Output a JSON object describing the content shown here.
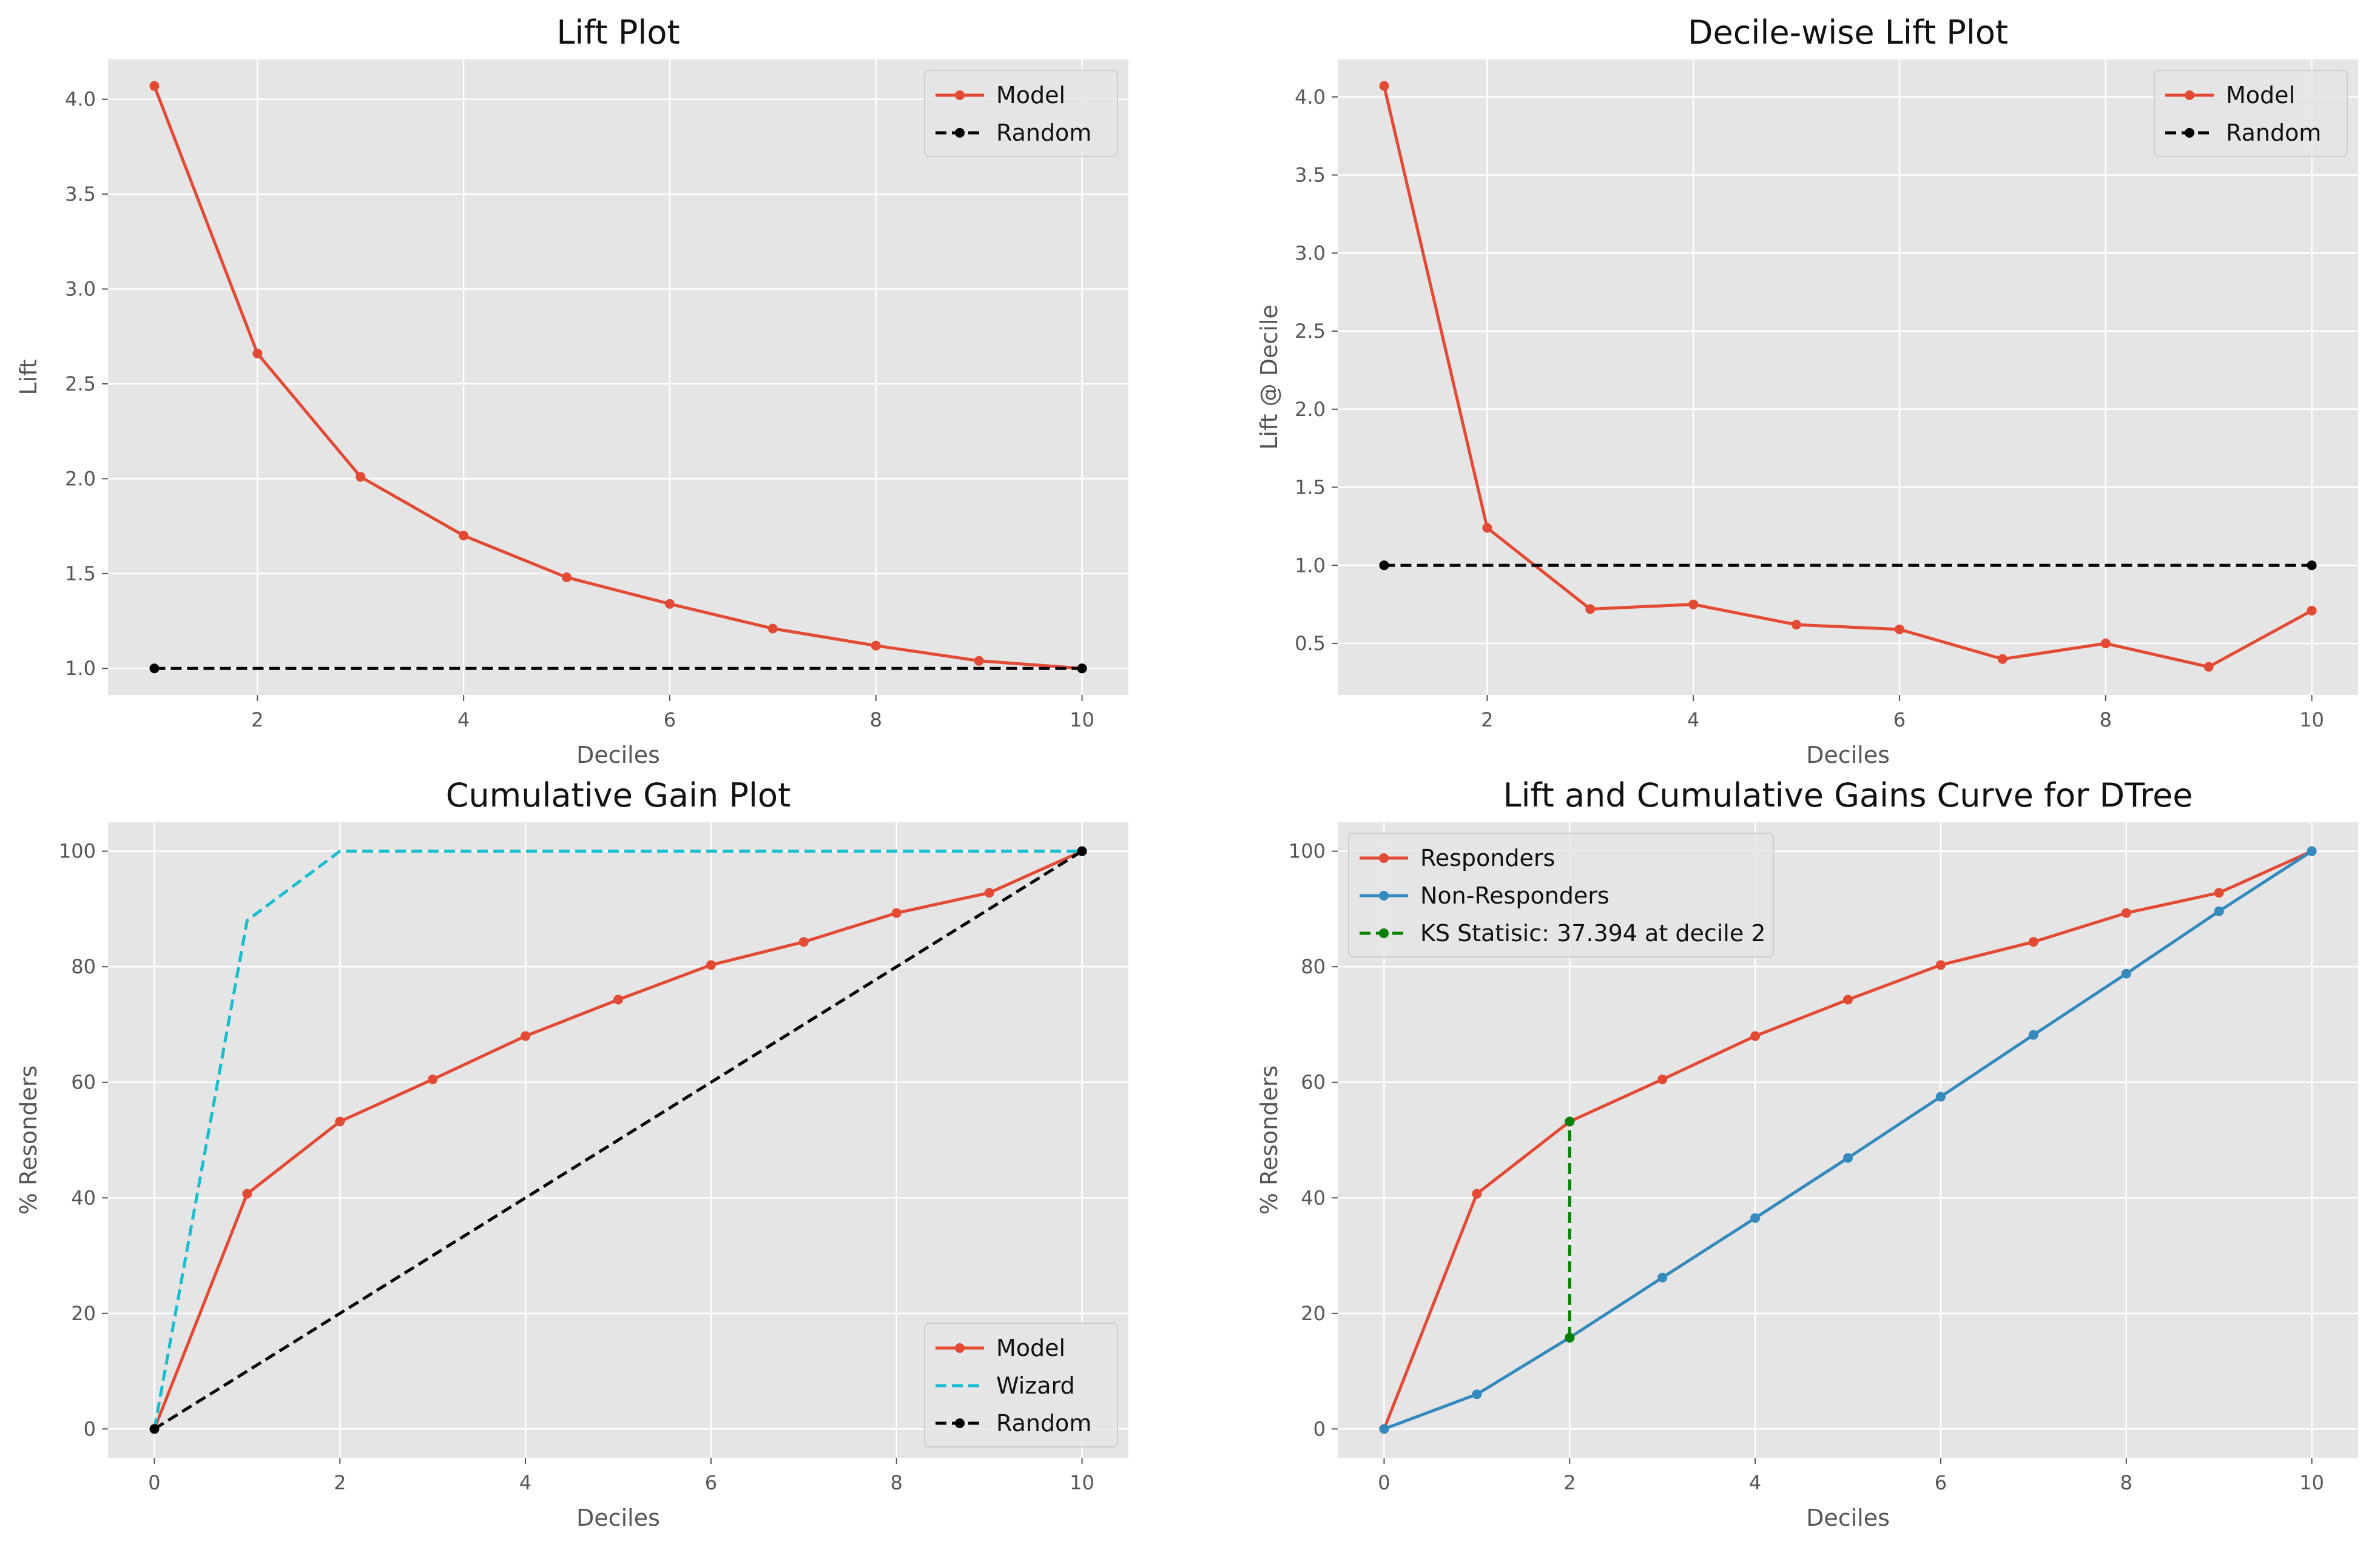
{
  "chart_data": [
    {
      "type": "line",
      "title": "Lift Plot",
      "xlabel": "Deciles",
      "ylabel": "Lift",
      "xlim": [
        0.55,
        10.45
      ],
      "ylim": [
        0.86,
        4.21
      ],
      "xticks": [
        2,
        4,
        6,
        8,
        10
      ],
      "yticks": [
        1.0,
        1.5,
        2.0,
        2.5,
        3.0,
        3.5,
        4.0
      ],
      "ytick_decimals": 1,
      "grid": true,
      "legend_position": "top-right",
      "series": [
        {
          "name": "Model",
          "color": "#E24A33",
          "style": "solid",
          "marker": true,
          "x": [
            1,
            2,
            3,
            4,
            5,
            6,
            7,
            8,
            9,
            10
          ],
          "y": [
            4.07,
            2.66,
            2.01,
            1.7,
            1.48,
            1.34,
            1.21,
            1.12,
            1.04,
            1.0
          ]
        },
        {
          "name": "Random",
          "color": "#000000",
          "style": "dashed",
          "marker": true,
          "marker_ends_only": true,
          "x": [
            1,
            10
          ],
          "y": [
            1.0,
            1.0
          ]
        }
      ]
    },
    {
      "type": "line",
      "title": "Decile-wise Lift Plot",
      "xlabel": "Deciles",
      "ylabel": "Lift @ Decile",
      "xlim": [
        0.55,
        10.45
      ],
      "ylim": [
        0.17,
        4.24
      ],
      "xticks": [
        2,
        4,
        6,
        8,
        10
      ],
      "yticks": [
        0.5,
        1.0,
        1.5,
        2.0,
        2.5,
        3.0,
        3.5,
        4.0
      ],
      "ytick_decimals": 1,
      "grid": true,
      "legend_position": "top-right",
      "series": [
        {
          "name": "Model",
          "color": "#E24A33",
          "style": "solid",
          "marker": true,
          "x": [
            1,
            2,
            3,
            4,
            5,
            6,
            7,
            8,
            9,
            10
          ],
          "y": [
            4.07,
            1.24,
            0.72,
            0.75,
            0.62,
            0.59,
            0.4,
            0.5,
            0.35,
            0.71
          ]
        },
        {
          "name": "Random",
          "color": "#000000",
          "style": "dashed",
          "marker": true,
          "marker_ends_only": true,
          "x": [
            1,
            10
          ],
          "y": [
            1.0,
            1.0
          ]
        }
      ]
    },
    {
      "type": "line",
      "title": "Cumulative Gain Plot",
      "xlabel": "Deciles",
      "ylabel": "% Resonders",
      "xlim": [
        -0.5,
        10.5
      ],
      "ylim": [
        -5,
        105
      ],
      "xticks": [
        0,
        2,
        4,
        6,
        8,
        10
      ],
      "yticks": [
        0,
        20,
        40,
        60,
        80,
        100
      ],
      "ytick_decimals": 0,
      "grid": true,
      "legend_position": "bottom-right",
      "series": [
        {
          "name": "Model",
          "color": "#E24A33",
          "style": "solid",
          "marker": true,
          "x": [
            0,
            1,
            2,
            3,
            4,
            5,
            6,
            7,
            8,
            9,
            10
          ],
          "y": [
            0,
            40.7,
            53.2,
            60.5,
            68.0,
            74.3,
            80.3,
            84.3,
            89.3,
            92.8,
            100
          ]
        },
        {
          "name": "Wizard",
          "color": "#17BECF",
          "style": "dashed",
          "marker": false,
          "x": [
            0,
            1,
            2,
            10
          ],
          "y": [
            0,
            88.0,
            100,
            100
          ]
        },
        {
          "name": "Random",
          "color": "#000000",
          "style": "dashed",
          "marker": true,
          "marker_ends_only": true,
          "x": [
            0,
            10
          ],
          "y": [
            0,
            100
          ]
        }
      ]
    },
    {
      "type": "line",
      "title": "Lift and Cumulative Gains Curve for DTree",
      "xlabel": "Deciles",
      "ylabel": "% Resonders",
      "xlim": [
        -0.5,
        10.5
      ],
      "ylim": [
        -5,
        105
      ],
      "xticks": [
        0,
        2,
        4,
        6,
        8,
        10
      ],
      "yticks": [
        0,
        20,
        40,
        60,
        80,
        100
      ],
      "ytick_decimals": 0,
      "grid": true,
      "legend_position": "top-left",
      "series": [
        {
          "name": "Responders",
          "color": "#E24A33",
          "style": "solid",
          "marker": true,
          "x": [
            0,
            1,
            2,
            3,
            4,
            5,
            6,
            7,
            8,
            9,
            10
          ],
          "y": [
            0,
            40.7,
            53.2,
            60.5,
            68.0,
            74.3,
            80.3,
            84.3,
            89.3,
            92.8,
            100
          ]
        },
        {
          "name": "Non-Responders",
          "color": "#348ABD",
          "style": "solid",
          "marker": true,
          "x": [
            0,
            1,
            2,
            3,
            4,
            5,
            6,
            7,
            8,
            9,
            10
          ],
          "y": [
            0,
            6.0,
            15.8,
            26.2,
            36.5,
            46.9,
            57.5,
            68.2,
            78.8,
            89.6,
            100
          ]
        },
        {
          "name": "KS Statisic: 37.394 at decile 2",
          "color": "#008000",
          "style": "dashed",
          "marker": true,
          "x": [
            2,
            2
          ],
          "y": [
            15.8,
            53.2
          ]
        }
      ]
    }
  ]
}
